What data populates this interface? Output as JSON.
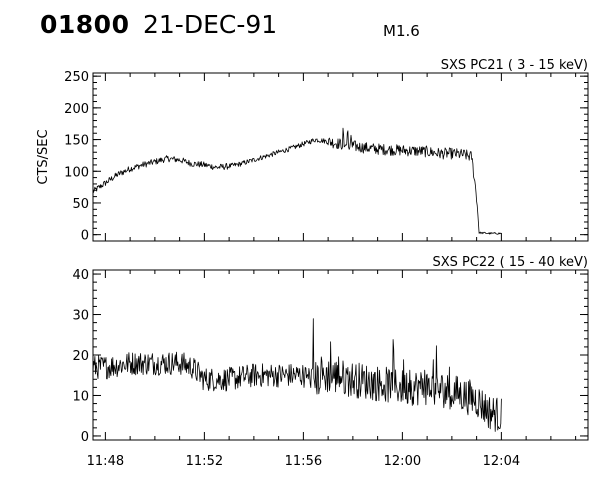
{
  "header": {
    "event_id": "01800",
    "date": "21-DEC-91",
    "flare_class": "M1.6"
  },
  "chart_data": [
    {
      "type": "line",
      "label": "SXS PC21  (  3 - 15 keV)",
      "ylabel": "CTS/SEC",
      "xlim": [
        "11:47.5",
        "12:07.5"
      ],
      "ylim": [
        -10,
        255
      ],
      "yticks": [
        0,
        50,
        100,
        150,
        200,
        250
      ],
      "xticks": [
        "11:48",
        "11:52",
        "11:56",
        "12:00",
        "12:04"
      ],
      "grid": false,
      "series": [
        {
          "x_minutes_after_1148": [
            -0.5,
            0.5,
            1,
            1.5,
            2,
            2.5,
            3,
            3.5,
            4,
            4.5,
            5,
            5.5,
            6,
            6.5,
            7,
            7.5,
            8,
            8.5,
            9,
            9.5,
            10,
            10.5,
            11,
            11.5,
            12,
            12.5,
            13,
            13.5,
            14,
            14.5,
            14.8,
            15,
            15.1,
            15.5,
            16
          ],
          "y": [
            68,
            95,
            104,
            110,
            115,
            120,
            118,
            112,
            110,
            106,
            108,
            112,
            118,
            124,
            130,
            136,
            143,
            150,
            147,
            143,
            140,
            137,
            135,
            134,
            133,
            132,
            131,
            128,
            128,
            126,
            123,
            60,
            3,
            2,
            2
          ]
        }
      ]
    },
    {
      "type": "line",
      "label": "SXS PC22  ( 15 - 40 keV)",
      "ylabel": "",
      "xlim": [
        "11:47.5",
        "12:07.5"
      ],
      "ylim": [
        -1,
        41
      ],
      "yticks": [
        0,
        10,
        20,
        30,
        40
      ],
      "xticks": [
        "11:48",
        "11:52",
        "11:56",
        "12:00",
        "12:04"
      ],
      "grid": false,
      "series": [
        {
          "x_minutes_after_1148": [
            -0.5,
            0,
            1,
            2,
            3,
            3.5,
            4,
            5,
            6,
            7,
            8,
            8.5,
            9,
            10,
            11,
            12,
            13,
            14,
            15,
            15.5,
            16
          ],
          "y": [
            17,
            17,
            18,
            18,
            18,
            17,
            14,
            14,
            15,
            15,
            15,
            14,
            15,
            14,
            13,
            12,
            12,
            11,
            9,
            6,
            5
          ]
        }
      ]
    }
  ]
}
